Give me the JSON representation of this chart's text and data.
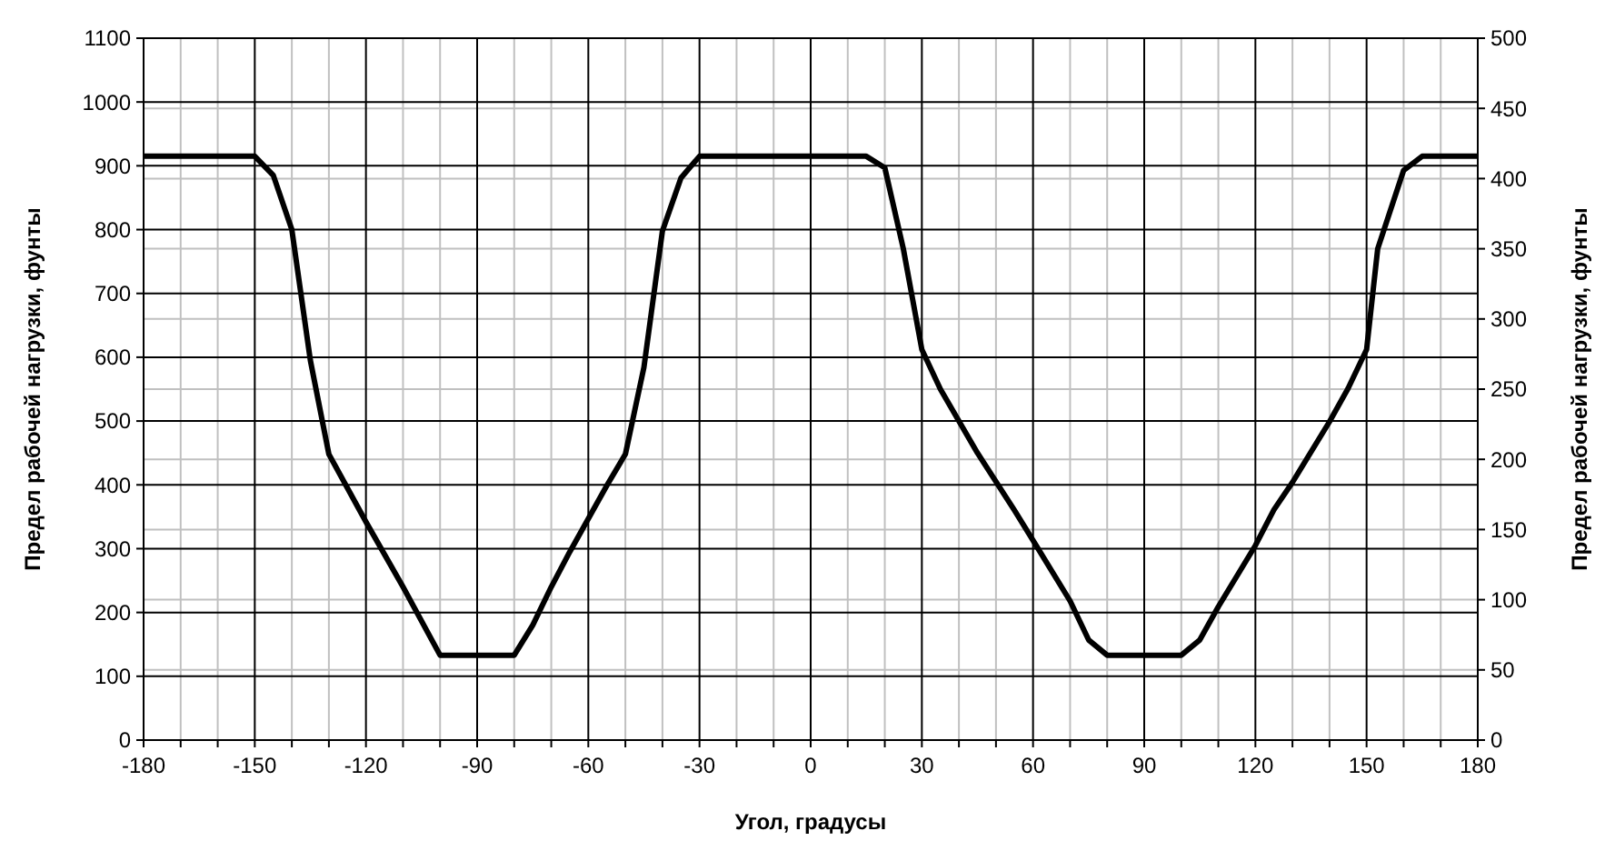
{
  "chart_data": {
    "type": "line",
    "xlabel": "Угол, градусы",
    "ylabel": "Предел рабочей нагрузки, фунты",
    "y2label": "Предел рабочей нагрузки, фунты",
    "x": [
      -180,
      -150,
      -145,
      -140,
      -135,
      -130,
      -120,
      -110,
      -100,
      -80,
      -75,
      -70,
      -65,
      -60,
      -55,
      -50,
      -45,
      -40,
      -35,
      -30,
      15,
      20,
      25,
      30,
      35,
      45,
      55,
      60,
      70,
      75,
      80,
      100,
      105,
      110,
      120,
      125,
      130,
      140,
      145,
      150,
      153,
      160,
      165,
      180
    ],
    "series": [
      {
        "color": "#000000",
        "values": [
          915,
          915,
          885,
          800,
          595,
          448,
          342,
          240,
          133,
          133,
          180,
          240,
          295,
          347,
          399,
          448,
          584,
          798,
          881,
          915,
          915,
          897,
          770,
          612,
          550,
          450,
          360,
          313,
          218,
          157,
          133,
          133,
          157,
          209,
          305,
          361,
          404,
          499,
          551,
          612,
          770,
          893,
          915,
          915
        ]
      }
    ],
    "xlim": [
      -180,
      180
    ],
    "xticks": [
      -180,
      {
        "value": -170,
        "label": null
      },
      {
        "value": -160,
        "label": null
      },
      -150,
      {
        "value": -140,
        "label": null
      },
      {
        "value": -130,
        "label": null
      },
      -120,
      {
        "value": -110,
        "label": null
      },
      {
        "value": -100,
        "label": null
      },
      -90,
      {
        "value": -80,
        "label": null
      },
      {
        "value": -70,
        "label": null
      },
      -60,
      {
        "value": -50,
        "label": null
      },
      {
        "value": -40,
        "label": null
      },
      -30,
      {
        "value": -20,
        "label": null
      },
      {
        "value": -10,
        "label": null
      },
      0,
      {
        "value": 10,
        "label": null
      },
      {
        "value": 20,
        "label": null
      },
      30,
      {
        "value": 40,
        "label": null
      },
      {
        "value": 50,
        "label": null
      },
      60,
      {
        "value": 70,
        "label": null
      },
      {
        "value": 80,
        "label": null
      },
      90,
      {
        "value": 100,
        "label": null
      },
      {
        "value": 110,
        "label": null
      },
      120,
      {
        "value": 130,
        "label": null
      },
      {
        "value": 140,
        "label": null
      },
      150,
      {
        "value": 160,
        "label": null
      },
      {
        "value": 170,
        "label": null
      },
      180
    ],
    "ylim": [
      0,
      1100
    ],
    "yticks": [
      0,
      100,
      200,
      300,
      400,
      500,
      600,
      700,
      800,
      900,
      1000,
      1100
    ],
    "y2lim": [
      0,
      500
    ],
    "y2ticks": [
      0,
      50,
      100,
      150,
      200,
      250,
      300,
      350,
      400,
      450,
      500
    ],
    "grid": true,
    "marker": "none",
    "line_style": "solid"
  }
}
